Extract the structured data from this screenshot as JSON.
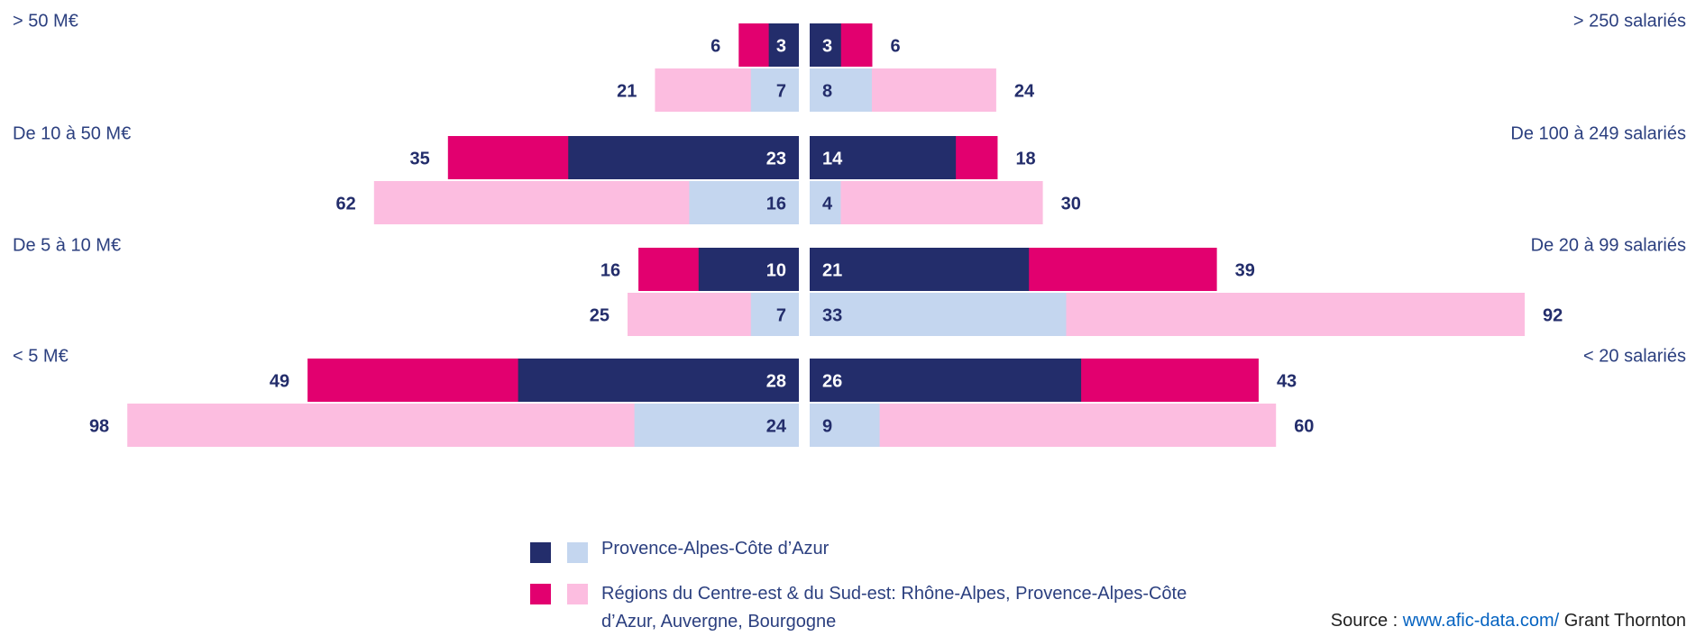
{
  "chart_data": {
    "type": "butterfly",
    "legend": [
      {
        "name": "Provence-Alpes-Côte d’Azur",
        "colors": [
          "#232d6b",
          "#c4d6ef"
        ]
      },
      {
        "name": "Régions du Centre-est & du Sud-est: Rhône-Alpes, Provence-Alpes-Côte d’Azur, Auvergne, Bourgogne",
        "colors": [
          "#e2006f",
          "#fcbde0"
        ]
      }
    ],
    "panels": [
      {
        "side": "left",
        "categories": [
          "> 50 M€",
          "De 10 à 50 M€",
          "De 5 à 10 M€",
          "< 5 M€"
        ],
        "series": [
          {
            "color": "#e2006f",
            "values": [
              6,
              35,
              16,
              49
            ]
          },
          {
            "color": "#232d6b",
            "values": [
              3,
              23,
              10,
              28
            ]
          },
          {
            "color": "#fcbde0",
            "values": [
              21,
              62,
              25,
              98
            ]
          },
          {
            "color": "#c4d6ef",
            "values": [
              7,
              16,
              7,
              24
            ]
          }
        ]
      },
      {
        "side": "right",
        "categories": [
          "> 250 salariés",
          "De 100 à 249 salariés",
          "De 20 à 99 salariés",
          "< 20 salariés"
        ],
        "series": [
          {
            "color": "#e2006f",
            "values": [
              6,
              18,
              39,
              43
            ]
          },
          {
            "color": "#232d6b",
            "values": [
              3,
              14,
              21,
              26
            ]
          },
          {
            "color": "#fcbde0",
            "values": [
              24,
              30,
              92,
              60
            ]
          },
          {
            "color": "#c4d6ef",
            "values": [
              8,
              4,
              33,
              9
            ]
          }
        ]
      }
    ],
    "source": {
      "prefix": "Source :",
      "link": "www.afic-data.com/",
      "suffix": "Grant Thornton"
    }
  }
}
